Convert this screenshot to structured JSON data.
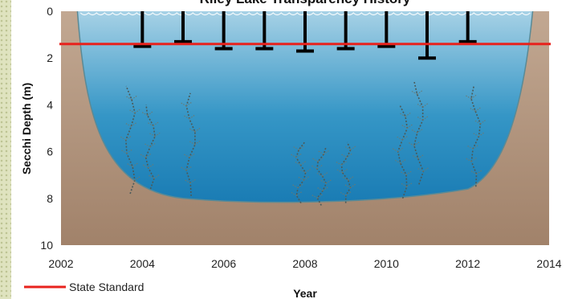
{
  "chart_data": {
    "type": "bar",
    "title": "Riley Lake Transparency History",
    "xlabel": "Year",
    "ylabel": "Secchi Depth (m)",
    "xlim": [
      2002,
      2014
    ],
    "ylim": [
      0,
      10
    ],
    "y_inverted": true,
    "x_ticks": [
      "2002",
      "2004",
      "2006",
      "2008",
      "2010",
      "2012",
      "2014"
    ],
    "y_ticks": [
      "0",
      "2",
      "4",
      "6",
      "8",
      "10"
    ],
    "grid": false,
    "legend_position": "bottom-left",
    "reference_line": {
      "name": "State Standard",
      "value": 1.4,
      "color": "#e8221d"
    },
    "series": [
      {
        "x": [
          2004,
          2005,
          2006,
          2007,
          2008,
          2009,
          2010,
          2011,
          2012
        ],
        "values": [
          1.5,
          1.3,
          1.6,
          1.6,
          1.7,
          1.6,
          1.5,
          2.0,
          1.3
        ]
      }
    ],
    "colors": {
      "water_top": "#a8d2e6",
      "water_bottom": "#1a80b8",
      "sediment": "#b0927a",
      "bar": "#000000"
    }
  }
}
